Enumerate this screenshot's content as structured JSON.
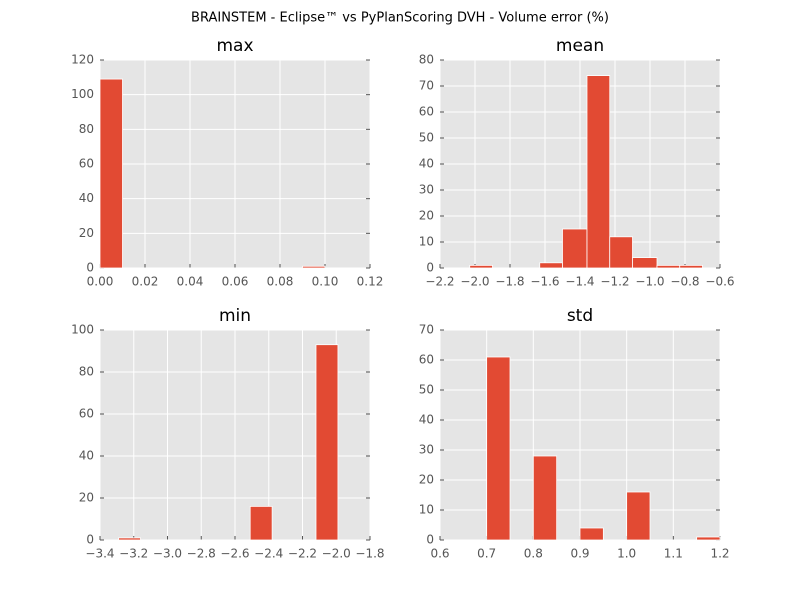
{
  "title": "BRAINSTEM - Eclipse™ vs PyPlanScoring DVH - Volume error (%)",
  "chart_data": [
    {
      "type": "histogram",
      "title": "max",
      "color": "#e24a33",
      "grid": true,
      "bins": [
        0,
        0.01,
        0.02,
        0.03,
        0.04,
        0.05,
        0.06,
        0.07,
        0.08,
        0.09,
        0.1
      ],
      "values": [
        109,
        0,
        0,
        0,
        0,
        0,
        0,
        0,
        0,
        1
      ],
      "xlim": [
        0,
        0.12
      ],
      "xticks": [
        {
          "value": 0,
          "label": "0.00"
        },
        {
          "value": 0.02,
          "label": "0.02"
        },
        {
          "value": 0.04,
          "label": "0.04"
        },
        {
          "value": 0.06,
          "label": "0.06"
        },
        {
          "value": 0.08,
          "label": "0.08"
        },
        {
          "value": 0.1,
          "label": "0.10"
        },
        {
          "value": 0.12,
          "label": "0.12"
        }
      ],
      "ylim": [
        0,
        120
      ],
      "yticks": [
        0,
        20,
        40,
        60,
        80,
        100,
        120
      ]
    },
    {
      "type": "histogram",
      "title": "mean",
      "color": "#e24a33",
      "grid": true,
      "bins": [
        -2.03,
        -1.9,
        -1.76,
        -1.63,
        -1.5,
        -1.36,
        -1.23,
        -1.1,
        -0.96,
        -0.83,
        -0.7
      ],
      "values": [
        1,
        0,
        0,
        2,
        15,
        74,
        12,
        4,
        1,
        1
      ],
      "xlim": [
        -2.2,
        -0.6
      ],
      "xticks": [
        {
          "value": -2.2,
          "label": "−2.2"
        },
        {
          "value": -2.0,
          "label": "−2.0"
        },
        {
          "value": -1.8,
          "label": "−1.8"
        },
        {
          "value": -1.6,
          "label": "−1.6"
        },
        {
          "value": -1.4,
          "label": "−1.4"
        },
        {
          "value": -1.2,
          "label": "−1.2"
        },
        {
          "value": -1.0,
          "label": "−1.0"
        },
        {
          "value": -0.8,
          "label": "−0.8"
        },
        {
          "value": -0.6,
          "label": "−0.6"
        }
      ],
      "ylim": [
        0,
        80
      ],
      "yticks": [
        0,
        10,
        20,
        30,
        40,
        50,
        60,
        70,
        80
      ]
    },
    {
      "type": "histogram",
      "title": "min",
      "color": "#e24a33",
      "grid": true,
      "bins": [
        -3.29,
        -3.16,
        -3.03,
        -2.9,
        -2.77,
        -2.64,
        -2.51,
        -2.38,
        -2.25,
        -2.12,
        -1.99
      ],
      "values": [
        1,
        0,
        0,
        0,
        0,
        0,
        16,
        0,
        0,
        93
      ],
      "xlim": [
        -3.4,
        -1.8
      ],
      "xticks": [
        {
          "value": -3.4,
          "label": "−3.4"
        },
        {
          "value": -3.2,
          "label": "−3.2"
        },
        {
          "value": -3.0,
          "label": "−3.0"
        },
        {
          "value": -2.8,
          "label": "−2.8"
        },
        {
          "value": -2.6,
          "label": "−2.6"
        },
        {
          "value": -2.4,
          "label": "−2.4"
        },
        {
          "value": -2.2,
          "label": "−2.2"
        },
        {
          "value": -2.0,
          "label": "−2.0"
        },
        {
          "value": -1.8,
          "label": "−1.8"
        }
      ],
      "ylim": [
        0,
        100
      ],
      "yticks": [
        0,
        20,
        40,
        60,
        80,
        100
      ]
    },
    {
      "type": "histogram",
      "title": "std",
      "color": "#e24a33",
      "grid": true,
      "bins": [
        0.7,
        0.75,
        0.8,
        0.85,
        0.9,
        0.95,
        1.0,
        1.05,
        1.1,
        1.15,
        1.2
      ],
      "values": [
        61,
        0,
        28,
        0,
        4,
        0,
        16,
        0,
        0,
        1
      ],
      "xlim": [
        0.6,
        1.2
      ],
      "xticks": [
        0.6,
        0.7,
        0.8,
        0.9,
        {
          "value": 1.0,
          "label": "1.0"
        },
        1.1,
        1.2
      ],
      "ylim": [
        0,
        70
      ],
      "yticks": [
        0,
        10,
        20,
        30,
        40,
        50,
        60,
        70
      ]
    }
  ]
}
